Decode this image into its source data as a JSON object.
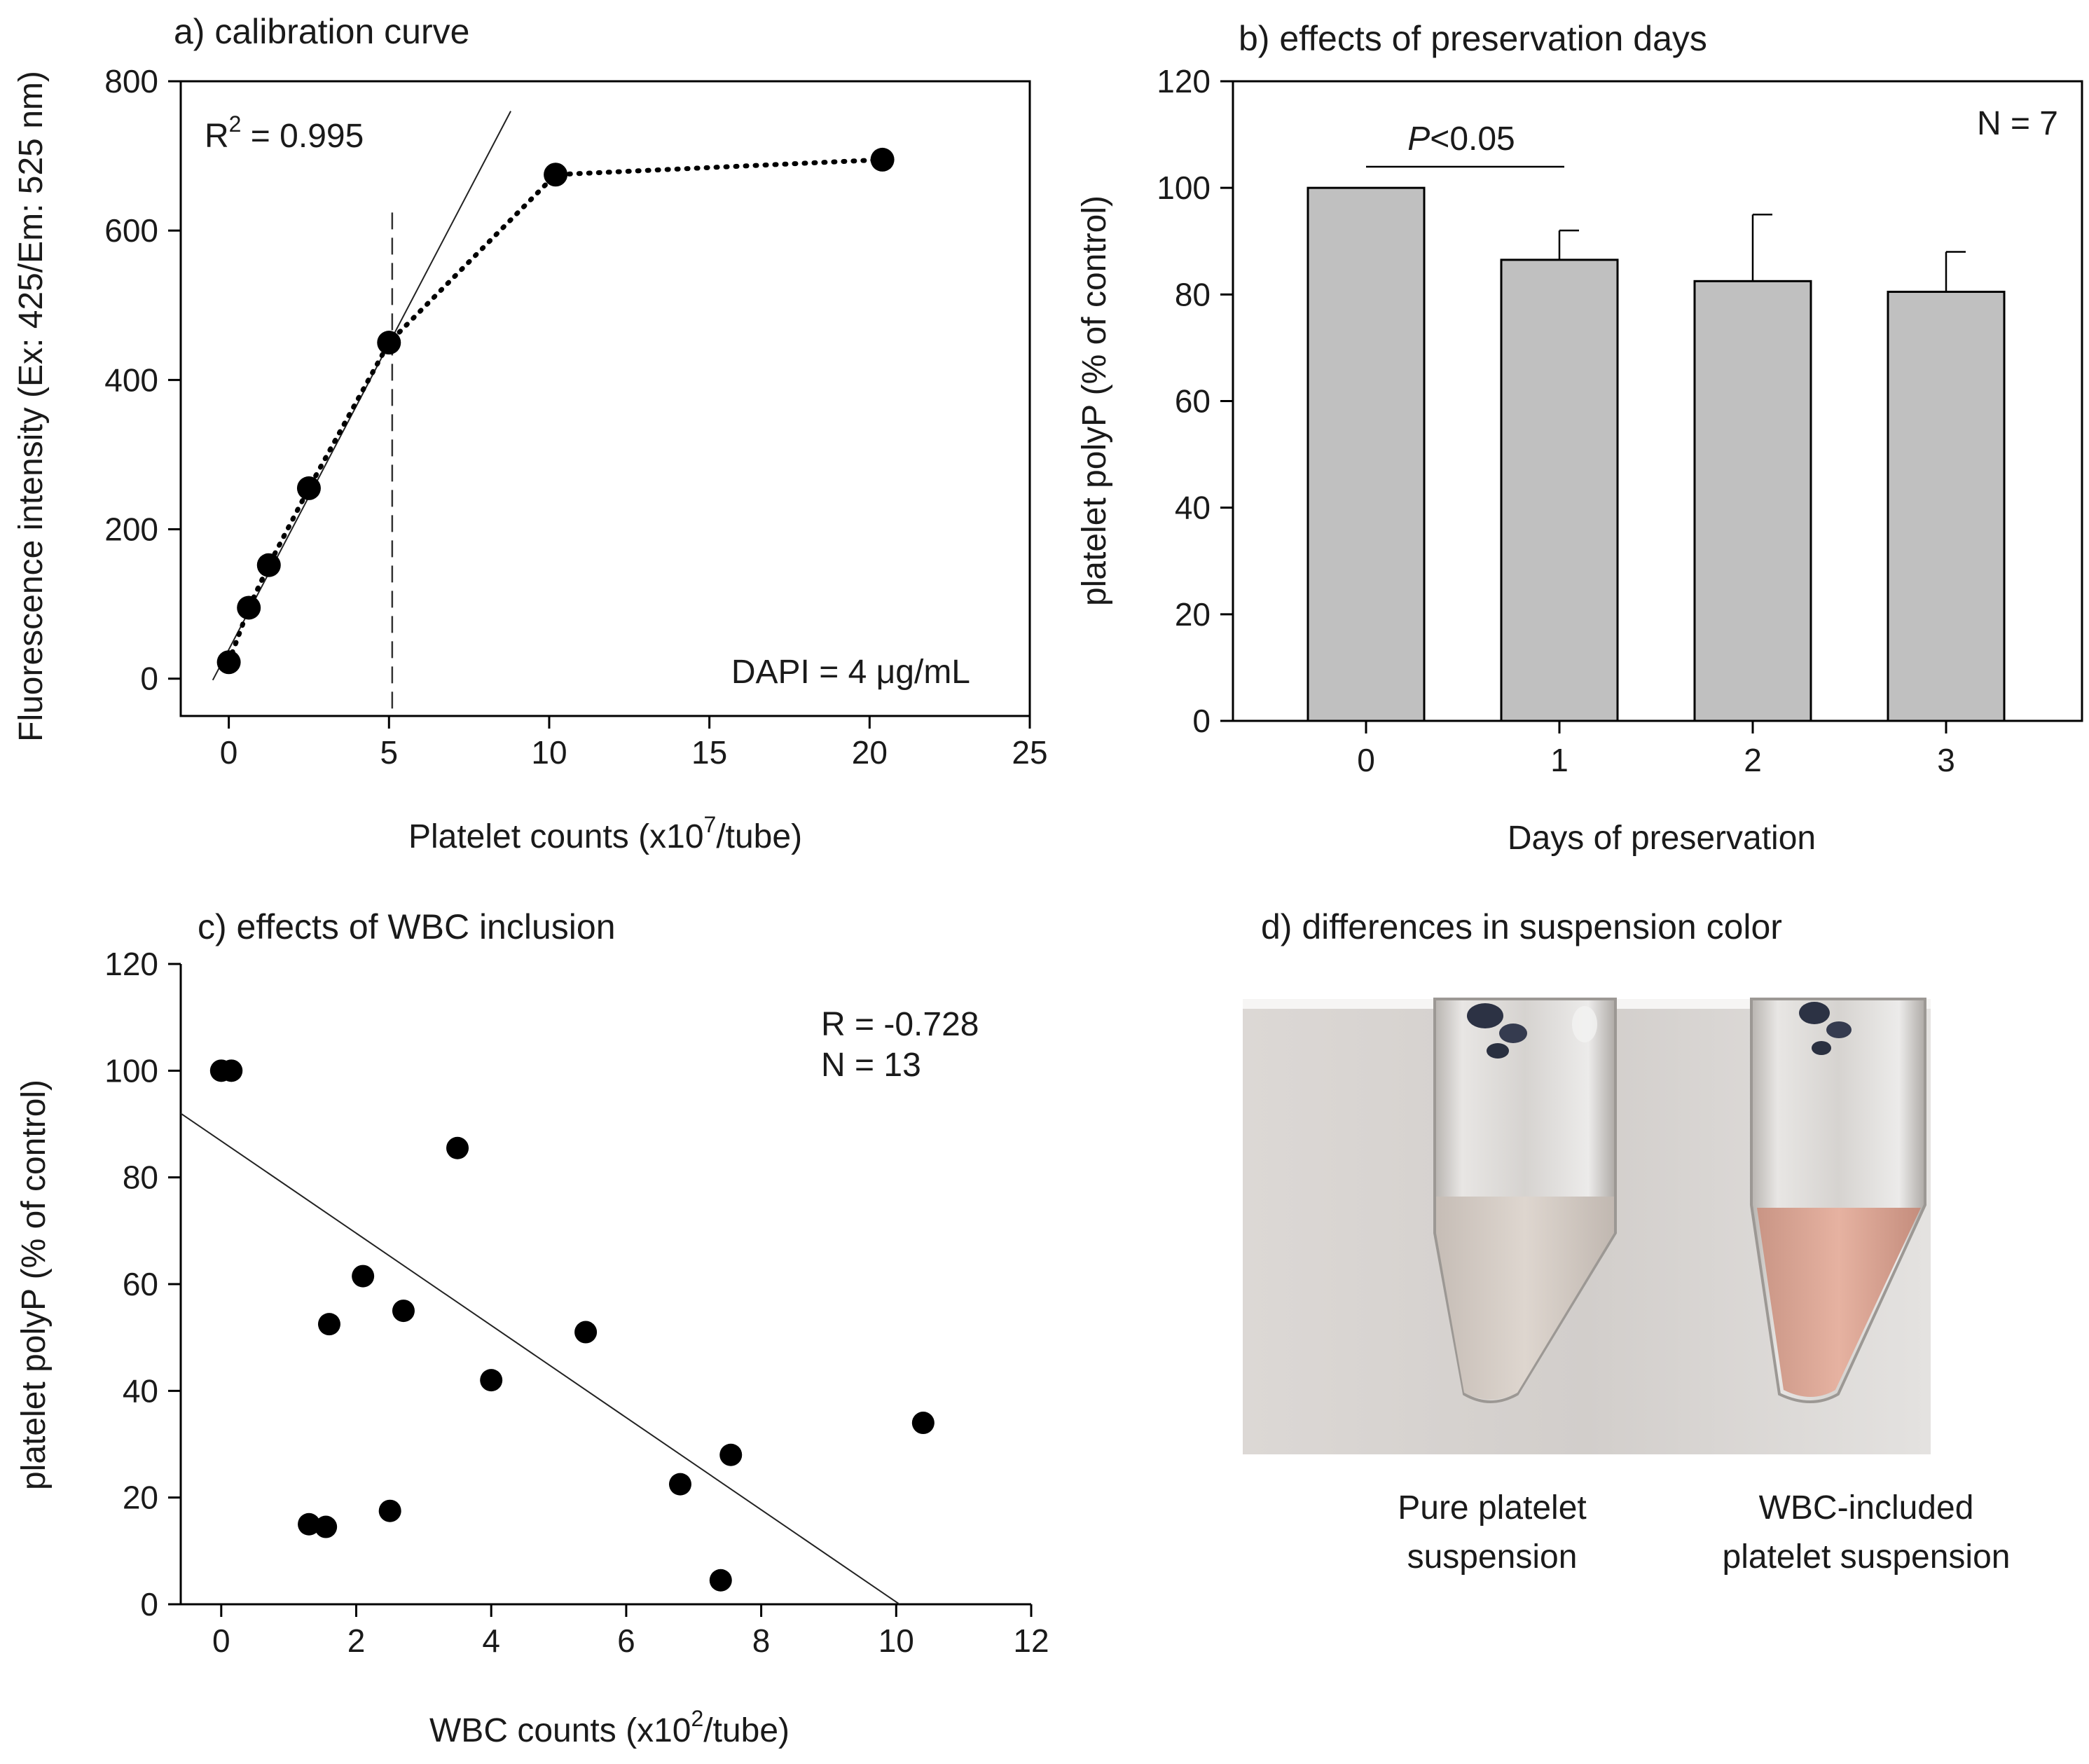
{
  "panels": {
    "a": {
      "title": "a) calibration curve",
      "r2_prefix": "R",
      "r2_sup": "2",
      "r2_value": " = 0.995",
      "dapi": "DAPI = 4 μg/mL",
      "xlabel_pre": "Platelet counts (x10",
      "xlabel_sup": "7",
      "xlabel_post": "/tube)",
      "ylabel": "Fluorescence intensity (Ex: 425/Em: 525 nm)"
    },
    "b": {
      "title": "b) effects of preservation days",
      "n": "N = 7",
      "p_italic": "P",
      "p_rest": "<0.05",
      "xlabel": "Days of preservation",
      "ylabel": "platelet polyP (% of control)"
    },
    "c": {
      "title": "c) effects of WBC inclusion",
      "r": "R = -0.728",
      "n": "N = 13",
      "xlabel_pre": "WBC counts (x10",
      "xlabel_sup": "2",
      "xlabel_post": "/tube)",
      "ylabel": "platelet polyP (% of control)"
    },
    "d": {
      "title": "d) differences in suspension color",
      "label_left": [
        "Pure platelet",
        "suspension"
      ],
      "label_right": [
        "WBC-included",
        "platelet suspension"
      ]
    }
  },
  "colors": {
    "bar_fill": "#c0c0c0",
    "pink_liquid": "#e0aa98",
    "clear_liquid": "#d9d0c8"
  },
  "chart_data": [
    {
      "type": "scatter",
      "title": "a) calibration curve",
      "xlabel": "Platelet counts (x10^7/tube)",
      "ylabel": "Fluorescence intensity (Ex: 425/Em: 525 nm)",
      "xlim": [
        -1.5,
        25
      ],
      "ylim": [
        -50,
        800
      ],
      "xticks": [
        0,
        5,
        10,
        15,
        20,
        25
      ],
      "yticks": [
        0,
        200,
        400,
        600,
        800
      ],
      "x": [
        0,
        0.625,
        1.25,
        2.5,
        5,
        10.2,
        20.4
      ],
      "y": [
        22,
        95,
        152,
        255,
        450,
        675,
        695
      ],
      "fit_line": {
        "x": [
          -0.5,
          8.8
        ],
        "y": [
          -2,
          760
        ]
      },
      "vline_x": 5.1,
      "vline_range": [
        -40,
        628
      ]
    },
    {
      "type": "bar",
      "title": "b) effects of preservation days",
      "xlabel": "Days of preservation",
      "ylabel": "platelet polyP (% of control)",
      "categories": [
        "0",
        "1",
        "2",
        "3"
      ],
      "values": [
        100,
        86.5,
        82.5,
        80.5
      ],
      "errors": [
        0,
        5.5,
        12.5,
        7.5
      ],
      "ylim": [
        0,
        120
      ],
      "yticks": [
        0,
        20,
        40,
        60,
        80,
        100,
        120
      ]
    },
    {
      "type": "scatter",
      "title": "c) effects of WBC inclusion",
      "xlabel": "WBC counts (x10^2/tube)",
      "ylabel": "platelet polyP (% of control)",
      "xlim": [
        -0.6,
        12
      ],
      "ylim": [
        0,
        120
      ],
      "xticks": [
        0,
        2,
        4,
        6,
        8,
        10,
        12
      ],
      "yticks": [
        0,
        20,
        40,
        60,
        80,
        100,
        120
      ],
      "x": [
        0,
        0.15,
        1.3,
        1.55,
        1.6,
        2.1,
        2.5,
        2.7,
        3.5,
        4.0,
        5.4,
        6.8,
        7.4,
        7.55,
        10.4
      ],
      "y": [
        100,
        100,
        15,
        14.5,
        52.5,
        61.5,
        17.5,
        55,
        85.5,
        42,
        51,
        22.5,
        4.5,
        28,
        34
      ],
      "fit_line": {
        "x": [
          -0.6,
          10.05
        ],
        "y": [
          92,
          0
        ]
      }
    }
  ]
}
